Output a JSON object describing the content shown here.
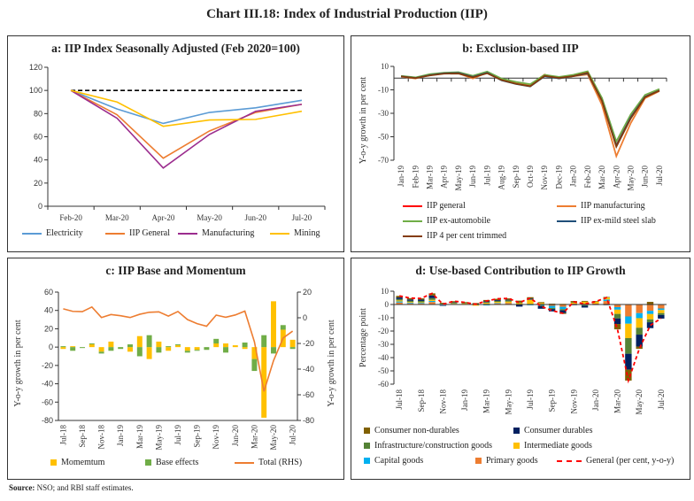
{
  "title": "Chart III.18: Index of Industrial Production (IIP)",
  "source": {
    "label": "Source:",
    "text": "NSO; and RBI staff estimates."
  },
  "chart_data": [
    {
      "id": "a",
      "type": "line",
      "title": "a: IIP Index Seasonally Adjusted (Feb 2020=100)",
      "categories": [
        "Feb-20",
        "Mar-20",
        "Apr-20",
        "May-20",
        "Jun-20",
        "Jul-20"
      ],
      "ylim": [
        0,
        120
      ],
      "yticks": [
        "0",
        "20",
        "40",
        "60",
        "80",
        "100",
        "120"
      ],
      "reference_line": {
        "value": 100,
        "style": "dashed",
        "color": "#000000"
      },
      "legend_position": "bottom",
      "series": [
        {
          "name": "Electricity",
          "color": "#5B9BD5",
          "values": [
            100,
            84,
            71.5,
            81,
            85,
            91.5
          ]
        },
        {
          "name": "IIP General",
          "color": "#ED7D31",
          "values": [
            100,
            79,
            41.5,
            65,
            81,
            88
          ]
        },
        {
          "name": "Manufacturing",
          "color": "#9B2C8E",
          "values": [
            100,
            76,
            33,
            62,
            82,
            88
          ]
        },
        {
          "name": "Mining",
          "color": "#FFC000",
          "values": [
            100,
            90,
            69,
            74.5,
            75,
            82
          ]
        }
      ]
    },
    {
      "id": "b",
      "type": "line",
      "title": "b: Exclusion-based IIP",
      "ylabel": "Y-o-y growth in per cent",
      "categories": [
        "Jan-19",
        "Feb-19",
        "Mar-19",
        "Apr-19",
        "May-19",
        "Jun-19",
        "Jul-19",
        "Aug-19",
        "Sep-19",
        "Oct-19",
        "Nov-19",
        "Dec-19",
        "Jan-20",
        "Feb-20",
        "Mar-20",
        "Apr-20",
        "May-20",
        "Jun-20",
        "Jul-20"
      ],
      "ylim": [
        -70,
        10
      ],
      "yticks": [
        "-70",
        "-50",
        "-30",
        "-10",
        "10"
      ],
      "legend_position": "bottom",
      "series": [
        {
          "name": "IIP general",
          "color": "#FF0000",
          "values": [
            1.6,
            0.2,
            2.7,
            4.3,
            4.6,
            1.3,
            4.9,
            -1.4,
            -4.6,
            -6.6,
            2.1,
            0.4,
            2.2,
            5.2,
            -18.7,
            -57.3,
            -33.4,
            -15.8,
            -10.4
          ]
        },
        {
          "name": "IIP manufacturing",
          "color": "#ED7D31",
          "values": [
            1.3,
            -0.3,
            3.1,
            4.0,
            4.0,
            -0.3,
            4.8,
            -1.7,
            -4.3,
            -5.7,
            3.0,
            -0.3,
            1.6,
            3.1,
            -22.8,
            -66.6,
            -38.4,
            -17.1,
            -11.1
          ]
        },
        {
          "name": "IIP ex-automobile",
          "color": "#70AD47",
          "values": [
            1.9,
            0.6,
            3.4,
            4.6,
            5.1,
            2.0,
            5.6,
            -0.4,
            -3.2,
            -5.2,
            2.8,
            1.0,
            2.8,
            5.8,
            -17.0,
            -54.0,
            -31.0,
            -14.3,
            -9.3
          ]
        },
        {
          "name": "IIP ex-mild steel slab",
          "color": "#1F4E79",
          "values": [
            1.5,
            0.1,
            2.5,
            4.1,
            4.4,
            1.0,
            4.6,
            -1.9,
            -5.0,
            -7.1,
            1.6,
            -0.3,
            1.7,
            4.1,
            -19.2,
            -57.8,
            -33.6,
            -15.9,
            -10.6
          ]
        },
        {
          "name": "IIP 4 per cent trimmed",
          "color": "#843C0C",
          "values": [
            1.4,
            0.0,
            2.3,
            3.8,
            3.9,
            0.7,
            4.1,
            -1.6,
            -4.8,
            -6.9,
            1.9,
            0.2,
            1.7,
            4.6,
            -19.5,
            -58.5,
            -34.5,
            -16.3,
            -10.7
          ]
        }
      ]
    },
    {
      "id": "c",
      "type": "bar",
      "title": "c: IIP Base and Momentum",
      "ylabel": "Y-o-y growth in per cent",
      "ylabel_right": "Y-o-y growth in per cent",
      "x_tick_labels": [
        "Jul-18",
        "Sep-18",
        "Nov-18",
        "Jan-19",
        "Mar-19",
        "May-19",
        "Jul-19",
        "Sep-19",
        "Nov-19",
        "Jan-20",
        "Mar-20",
        "May-20",
        "Jul-20"
      ],
      "ylim": [
        -80,
        60
      ],
      "yticks": [
        "-80",
        "-60",
        "-40",
        "-20",
        "0",
        "20",
        "40",
        "60"
      ],
      "ylim_right": [
        -80,
        20
      ],
      "yticks_right": [
        "-80",
        "-60",
        "-40",
        "-20",
        "0",
        "20"
      ],
      "legend_position": "bottom",
      "series": [
        {
          "name": "Momemtum",
          "kind": "bar",
          "color": "#FFC000",
          "values": [
            -2,
            1,
            0,
            3,
            -5,
            6,
            0,
            -5,
            12,
            -13,
            6,
            -4,
            2,
            -4,
            -3,
            0,
            4,
            4,
            2,
            -2,
            -13,
            -77,
            50,
            19,
            8
          ]
        },
        {
          "name": "Base effects",
          "kind": "bar",
          "color": "#70AD47",
          "values": [
            1,
            -4,
            -1,
            1,
            -2,
            -4,
            -2,
            3,
            -10,
            13,
            -6,
            1,
            1,
            -2,
            -1,
            -3,
            5,
            -6,
            0,
            5,
            -13,
            13,
            -7,
            5,
            -2
          ]
        },
        {
          "name": "Total (RHS)",
          "kind": "line",
          "axis": "right",
          "color": "#ED7D31",
          "values": [
            7,
            5,
            4.8,
            8.4,
            0.2,
            2.5,
            1.6,
            0.2,
            2.7,
            4.3,
            4.6,
            1.3,
            4.9,
            -1.4,
            -4.6,
            -6.6,
            2.1,
            0.4,
            2.2,
            5.2,
            -18.7,
            -57.3,
            -33.4,
            -15.8,
            -10.4
          ]
        }
      ]
    },
    {
      "id": "d",
      "type": "bar",
      "stacked": true,
      "title": "d: Use-based Contribution to IIP Growth",
      "ylabel": "Percentage point",
      "x_tick_labels": [
        "Jul-18",
        "Sep-18",
        "Nov-18",
        "Jan-19",
        "Mar-19",
        "May-19",
        "Jul-19",
        "Sep-19",
        "Nov-19",
        "Jan-20",
        "Mar-20",
        "May-20",
        "Jul-20"
      ],
      "ylim": [
        -60,
        10
      ],
      "yticks": [
        "-60",
        "-50",
        "-40",
        "-30",
        "-20",
        "-10",
        "0",
        "10"
      ],
      "legend_position": "bottom",
      "series": [
        {
          "name": "Primary goods",
          "color": "#ED7D31",
          "values": [
            1.5,
            0.8,
            0.7,
            1.9,
            -0.5,
            0.4,
            0.3,
            0.0,
            0.4,
            0.8,
            1.1,
            0.3,
            0.4,
            -0.1,
            -1.0,
            -1.7,
            0.6,
            0.7,
            0.7,
            2.6,
            -2.0,
            -9.0,
            -6.5,
            -4.8,
            -3.0
          ]
        },
        {
          "name": "Capital goods",
          "color": "#00B0F0",
          "values": [
            0.8,
            0.5,
            0.5,
            0.8,
            -0.3,
            0.1,
            0.1,
            -0.3,
            -0.7,
            0.4,
            0.1,
            -0.2,
            -0.6,
            -0.6,
            -1.6,
            -1.8,
            -0.3,
            -0.5,
            -0.3,
            1.2,
            -1.9,
            -5.5,
            -3.8,
            -2.4,
            -1.2
          ]
        },
        {
          "name": "Intermediate goods",
          "color": "#FFC000",
          "values": [
            0.8,
            0.6,
            0.5,
            0.8,
            0.4,
            0.3,
            0.3,
            -0.6,
            0.8,
            0.8,
            1.0,
            0.8,
            3.0,
            1.1,
            0.3,
            0.5,
            0.7,
            1.4,
            1.4,
            1.5,
            -3.2,
            -10.8,
            -7.2,
            -4.0,
            -2.3
          ]
        },
        {
          "name": "Infrastructure/construction goods",
          "color": "#548235",
          "values": [
            1.0,
            0.9,
            1.0,
            1.3,
            0.3,
            0.6,
            0.4,
            0.3,
            0.6,
            0.7,
            0.9,
            0.6,
            0.5,
            -0.4,
            -0.8,
            -0.9,
            0.3,
            -0.5,
            0.2,
            0.4,
            -3.4,
            -11.8,
            -5.2,
            -2.2,
            -1.4
          ]
        },
        {
          "name": "Consumer durables",
          "color": "#002060",
          "values": [
            1.2,
            1.0,
            1.0,
            2.0,
            -0.3,
            0.3,
            -0.2,
            0.3,
            0.7,
            0.6,
            0.5,
            -1.4,
            0.6,
            -2.1,
            -1.8,
            -2.0,
            -0.2,
            -1.3,
            -0.1,
            -0.5,
            -4.2,
            -12.0,
            -9.0,
            -4.4,
            -2.7
          ]
        },
        {
          "name": "Consumer non-durables",
          "color": "#806000",
          "values": [
            1.2,
            1.0,
            0.9,
            1.6,
            0.6,
            0.8,
            0.7,
            0.5,
            0.9,
            1.0,
            1.0,
            1.2,
            1.0,
            0.7,
            0.3,
            -0.7,
            1.0,
            0.6,
            0.3,
            0.0,
            -4.0,
            -8.2,
            -1.7,
            2.0,
            0.2
          ]
        },
        {
          "name": "General (per cent, y-o-y)",
          "kind": "line",
          "style": "dashed",
          "color": "#FF0000",
          "values": [
            6.5,
            4.8,
            4.6,
            8.4,
            0.2,
            2.5,
            1.6,
            0.2,
            2.7,
            4.3,
            4.6,
            1.3,
            4.9,
            -1.4,
            -4.6,
            -6.6,
            2.1,
            0.4,
            2.2,
            5.2,
            -18.7,
            -57.3,
            -33.4,
            -15.8,
            -10.4
          ]
        }
      ]
    }
  ]
}
